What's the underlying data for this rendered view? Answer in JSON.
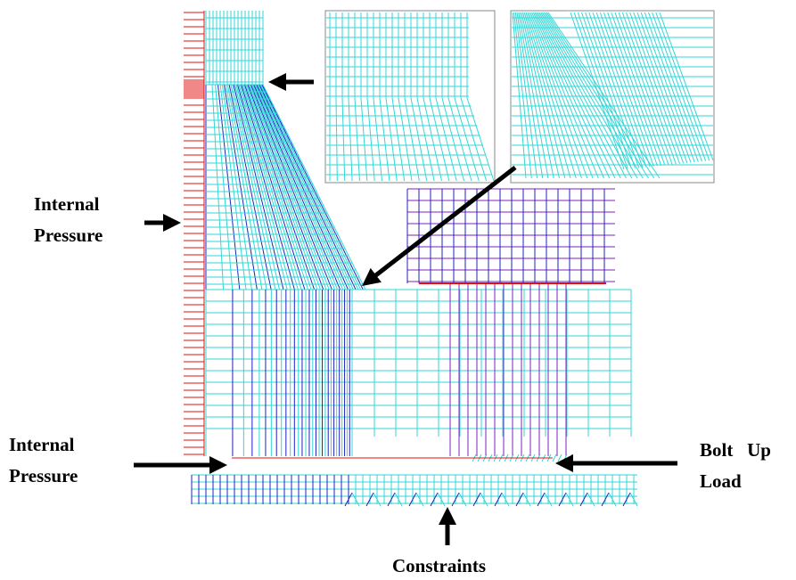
{
  "annotations": [
    {
      "lines": [
        "Internal",
        "Pressure"
      ]
    },
    {
      "lines": [
        "Internal",
        "Pressure"
      ]
    },
    {
      "lines": [
        "Bolt   Up",
        "Load"
      ]
    },
    {
      "lines": [
        "Constraints"
      ]
    }
  ]
}
